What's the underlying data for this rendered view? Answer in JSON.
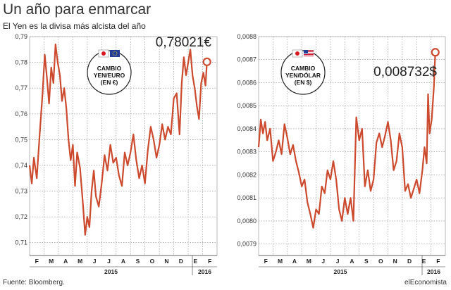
{
  "header": {
    "title": "Un año para enmarcar",
    "subtitle": "El Yen es la divisa más alcista del año"
  },
  "footer": {
    "source": "Fuente: Bloomberg.",
    "brand": "elEconomista"
  },
  "colors": {
    "line": "#cc4a2e",
    "grid": "#888888",
    "axis": "#333333"
  },
  "chart_data": [
    {
      "type": "line",
      "title": "",
      "badge": [
        "CAMBIO",
        "YEN/EURO",
        "(EN €)"
      ],
      "badge_icons": [
        "japan-flag-icon",
        "eu-flag-icon"
      ],
      "last_value_label": "0,78021€",
      "yticks": [
        0.71,
        0.72,
        0.73,
        0.74,
        0.75,
        0.76,
        0.77,
        0.78,
        0.79
      ],
      "ytick_labels": [
        "0,71",
        "0,72",
        "0,73",
        "0,74",
        "0,75",
        "0,76",
        "0,77",
        "0,78",
        "0,79"
      ],
      "ylim": [
        0.705,
        0.79
      ],
      "months": [
        "F",
        "M",
        "A",
        "M",
        "J",
        "J",
        "A",
        "S",
        "O",
        "N",
        "D",
        "E",
        "F"
      ],
      "years": [
        "2015",
        "2016"
      ],
      "grid": true,
      "x_unit": "months since start of February 2015",
      "series": [
        {
          "x": [
            0,
            0.15,
            0.3,
            0.5,
            0.7,
            0.9,
            1.05,
            1.2,
            1.35,
            1.5,
            1.65,
            1.8,
            1.95,
            2.1,
            2.25,
            2.4,
            2.55,
            2.7,
            2.85,
            3.0,
            3.15,
            3.3,
            3.5,
            3.7,
            3.85,
            4.0,
            4.15,
            4.3,
            4.45,
            4.6,
            4.8,
            5.0,
            5.2,
            5.4,
            5.6,
            5.8,
            6.0,
            6.2,
            6.4,
            6.6,
            6.8,
            7.0,
            7.2,
            7.4,
            7.6,
            7.8,
            8.0,
            8.2,
            8.4,
            8.6,
            8.8,
            9.0,
            9.2,
            9.4,
            9.6,
            9.8,
            10.0,
            10.2,
            10.4,
            10.55,
            10.7,
            10.85,
            11.0,
            11.15,
            11.3,
            11.45,
            11.6,
            11.75,
            11.9,
            12.05,
            12.2,
            12.3
          ],
          "y": [
            0.74,
            0.733,
            0.743,
            0.735,
            0.752,
            0.768,
            0.783,
            0.774,
            0.764,
            0.778,
            0.772,
            0.787,
            0.78,
            0.775,
            0.765,
            0.77,
            0.762,
            0.75,
            0.742,
            0.748,
            0.732,
            0.745,
            0.739,
            0.725,
            0.713,
            0.72,
            0.716,
            0.73,
            0.738,
            0.728,
            0.724,
            0.733,
            0.744,
            0.738,
            0.748,
            0.741,
            0.743,
            0.736,
            0.732,
            0.745,
            0.74,
            0.745,
            0.752,
            0.742,
            0.735,
            0.74,
            0.733,
            0.746,
            0.755,
            0.75,
            0.743,
            0.748,
            0.756,
            0.75,
            0.755,
            0.752,
            0.766,
            0.768,
            0.752,
            0.772,
            0.782,
            0.775,
            0.78,
            0.785,
            0.775,
            0.77,
            0.763,
            0.758,
            0.772,
            0.776,
            0.771,
            0.7802
          ]
        }
      ]
    },
    {
      "type": "line",
      "title": "",
      "badge": [
        "CAMBIO",
        "YEN/DÓLAR",
        "(EN $)"
      ],
      "badge_icons": [
        "japan-flag-icon",
        "us-flag-icon"
      ],
      "last_value_label": "0,008732$",
      "yticks": [
        0.0079,
        0.008,
        0.0081,
        0.0082,
        0.0083,
        0.0084,
        0.0085,
        0.0086,
        0.0087,
        0.0088
      ],
      "ytick_labels": [
        "0,0079",
        "0,0080",
        "0,0081",
        "0,0082",
        "0,0083",
        "0,0084",
        "0,0085",
        "0,0086",
        "0,0087",
        "0,0088"
      ],
      "ylim": [
        0.00785,
        0.0088
      ],
      "months": [
        "F",
        "M",
        "A",
        "M",
        "J",
        "J",
        "A",
        "S",
        "O",
        "N",
        "D",
        "E",
        "F"
      ],
      "years": [
        "2015",
        "2016"
      ],
      "grid": true,
      "x_unit": "months since start of February 2015",
      "series": [
        {
          "x": [
            0,
            0.15,
            0.3,
            0.45,
            0.6,
            0.8,
            1.0,
            1.2,
            1.4,
            1.6,
            1.8,
            2.0,
            2.2,
            2.4,
            2.6,
            2.8,
            3.0,
            3.2,
            3.4,
            3.6,
            3.8,
            4.0,
            4.2,
            4.4,
            4.6,
            4.8,
            5.0,
            5.2,
            5.4,
            5.6,
            5.8,
            6.0,
            6.2,
            6.4,
            6.6,
            6.8,
            7.0,
            7.2,
            7.4,
            7.6,
            7.8,
            8.0,
            8.2,
            8.4,
            8.6,
            8.8,
            9.0,
            9.2,
            9.4,
            9.6,
            9.8,
            10.0,
            10.2,
            10.4,
            10.6,
            10.8,
            11.0,
            11.2,
            11.4,
            11.55,
            11.7,
            11.8,
            11.9,
            12.05,
            12.2,
            12.3
          ],
          "y": [
            0.00832,
            0.00844,
            0.00838,
            0.00843,
            0.00835,
            0.0084,
            0.00826,
            0.0083,
            0.00835,
            0.00829,
            0.00842,
            0.00836,
            0.00829,
            0.00833,
            0.00826,
            0.00821,
            0.00815,
            0.00818,
            0.00808,
            0.00803,
            0.00797,
            0.00805,
            0.00803,
            0.00815,
            0.00812,
            0.00822,
            0.00818,
            0.00826,
            0.00818,
            0.00805,
            0.008,
            0.0081,
            0.00803,
            0.0081,
            0.008,
            0.00845,
            0.00835,
            0.0084,
            0.00815,
            0.00822,
            0.00813,
            0.00818,
            0.00834,
            0.00838,
            0.00832,
            0.00837,
            0.00843,
            0.00835,
            0.00822,
            0.00826,
            0.00838,
            0.00832,
            0.00813,
            0.00816,
            0.0081,
            0.00814,
            0.00818,
            0.00812,
            0.00822,
            0.00832,
            0.00825,
            0.00855,
            0.00838,
            0.00844,
            0.00858,
            0.008732
          ]
        }
      ]
    }
  ]
}
